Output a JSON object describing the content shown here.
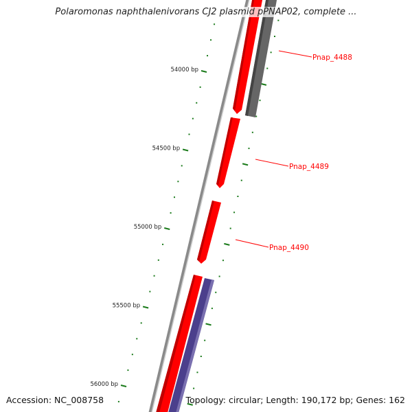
{
  "title": "Polaromonas naphthalenivorans CJ2 plasmid pPNAP02, complete ...",
  "accession_label": "Accession: NC_008758",
  "topology_label": "Topology: circular; Length: 190,172 bp; Genes: 162",
  "tick_labels": [
    "54000 bp",
    "54500 bp",
    "55000 bp",
    "55500 bp",
    "56000 bp"
  ],
  "genes": [
    {
      "name": "Pnap_4488"
    },
    {
      "name": "Pnap_4489"
    },
    {
      "name": "Pnap_4490"
    }
  ],
  "colors": {
    "forward": "#ff0000",
    "reverse_gray": "#666666",
    "reverse_purple": "#4b3f8c",
    "ticks": "#1a7a1a",
    "backbone": "#888888",
    "label": "#ff0000"
  }
}
